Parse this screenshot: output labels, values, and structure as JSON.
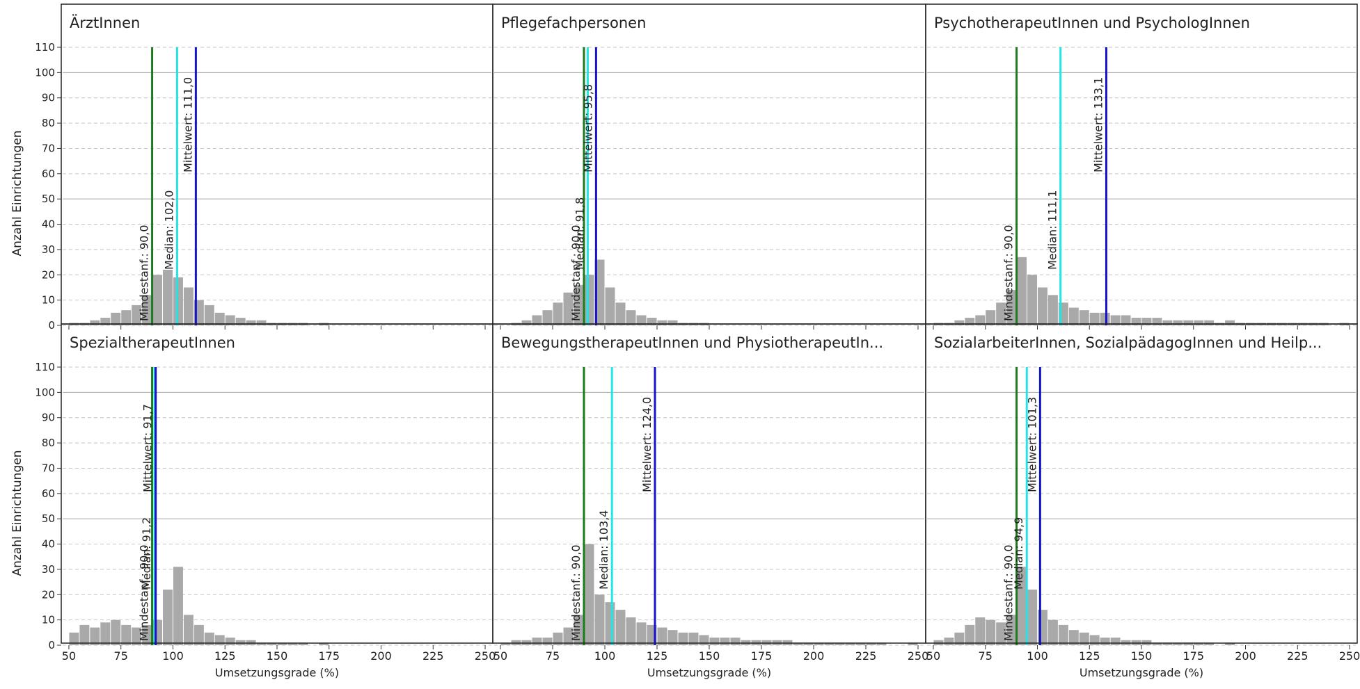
{
  "y_axis_label": "Anzahl Einrichtungen",
  "x_axis_label": "Umsetzungsgrade (%)",
  "line_label_prefixes": {
    "mindest": "Mindestanf.",
    "median": "Median",
    "mittel": "Mittelwert"
  },
  "colors": {
    "mindest": "#1e7a1e",
    "median": "#22e5e5",
    "mittel": "#1414c8",
    "bars": "#a9a9a9",
    "gridline": "#c8c8c8",
    "border": "#222222"
  },
  "x_ticks": [
    50,
    75,
    100,
    125,
    150,
    175,
    200,
    225,
    250
  ],
  "y_ticks": [
    0,
    10,
    20,
    30,
    40,
    50,
    60,
    70,
    80,
    90,
    100,
    110
  ],
  "chart_data": [
    {
      "type": "bar",
      "title": "ÄrztInnen",
      "xlabel": "Umsetzungsgrade (%)",
      "ylabel": "Anzahl Einrichtungen",
      "xlim": [
        47,
        253
      ],
      "ylim": [
        0,
        110
      ],
      "lines": {
        "mindest": "90,0",
        "median": "102,0",
        "mittel": "111,0"
      },
      "line_values": {
        "mindest": 90.0,
        "median": 102.0,
        "mittel": 111.0
      },
      "histogram": {
        "bin_start": 50,
        "bin_width": 5,
        "values": [
          1,
          1,
          2,
          3,
          5,
          6,
          8,
          12,
          20,
          22,
          19,
          15,
          10,
          8,
          5,
          4,
          3,
          2,
          2,
          1,
          1,
          1,
          1,
          0,
          1,
          0,
          0,
          0,
          0,
          0,
          0,
          0,
          0,
          0,
          0,
          0,
          0,
          0,
          0,
          0
        ]
      }
    },
    {
      "type": "bar",
      "title": "Pflegefachpersonen",
      "xlabel": "Umsetzungsgrade (%)",
      "ylabel": "Anzahl Einrichtungen",
      "xlim": [
        47,
        253
      ],
      "ylim": [
        0,
        110
      ],
      "lines": {
        "mindest": "90,0",
        "median": "91,8",
        "mittel": "95,8"
      },
      "line_values": {
        "mindest": 90.0,
        "median": 91.8,
        "mittel": 95.8
      },
      "histogram": {
        "bin_start": 50,
        "bin_width": 5,
        "values": [
          0,
          1,
          2,
          4,
          6,
          9,
          13,
          16,
          20,
          26,
          15,
          9,
          6,
          4,
          3,
          2,
          2,
          1,
          1,
          1,
          0,
          0,
          0,
          0,
          0,
          0,
          0,
          0,
          0,
          0,
          0,
          0,
          0,
          0,
          0,
          0,
          0,
          0,
          0,
          0
        ]
      }
    },
    {
      "type": "bar",
      "title": "PsychotherapeutInnen und PsychologInnen",
      "xlabel": "Umsetzungsgrade (%)",
      "ylabel": "Anzahl Einrichtungen",
      "xlim": [
        47,
        253
      ],
      "ylim": [
        0,
        110
      ],
      "lines": {
        "mindest": "90,0",
        "median": "111,1",
        "mittel": "133,1"
      },
      "line_values": {
        "mindest": 90.0,
        "median": 111.1,
        "mittel": 133.1
      },
      "histogram": {
        "bin_start": 50,
        "bin_width": 5,
        "values": [
          1,
          1,
          2,
          3,
          4,
          6,
          9,
          14,
          27,
          20,
          15,
          12,
          9,
          7,
          6,
          5,
          5,
          4,
          4,
          3,
          3,
          3,
          2,
          2,
          2,
          2,
          2,
          1,
          2,
          1,
          1,
          1,
          1,
          1,
          1,
          1,
          1,
          1,
          0,
          1
        ]
      }
    },
    {
      "type": "bar",
      "title": "SpezialtherapeutInnen",
      "xlabel": "Umsetzungsgrade (%)",
      "ylabel": "Anzahl Einrichtungen",
      "xlim": [
        47,
        253
      ],
      "ylim": [
        0,
        110
      ],
      "lines": {
        "mindest": "90,0",
        "median": "91,2",
        "mittel": "91,7"
      },
      "line_values": {
        "mindest": 90.0,
        "median": 91.2,
        "mittel": 91.7
      },
      "histogram": {
        "bin_start": 50,
        "bin_width": 5,
        "values": [
          5,
          8,
          7,
          9,
          10,
          8,
          7,
          8,
          10,
          22,
          31,
          12,
          8,
          5,
          4,
          3,
          2,
          2,
          1,
          1,
          1,
          1,
          1,
          0,
          1,
          0,
          0,
          0,
          0,
          0,
          0,
          0,
          0,
          0,
          0,
          0,
          0,
          0,
          0,
          0
        ]
      }
    },
    {
      "type": "bar",
      "title": "BewegungstherapeutInnen und PhysiotherapeutIn...",
      "xlabel": "Umsetzungsgrade (%)",
      "ylabel": "Anzahl Einrichtungen",
      "xlim": [
        47,
        253
      ],
      "ylim": [
        0,
        110
      ],
      "lines": {
        "mindest": "90,0",
        "median": "103,4",
        "mittel": "124,0"
      },
      "line_values": {
        "mindest": 90.0,
        "median": 103.4,
        "mittel": 124.0
      },
      "histogram": {
        "bin_start": 50,
        "bin_width": 5,
        "values": [
          1,
          2,
          2,
          3,
          3,
          5,
          7,
          12,
          40,
          20,
          17,
          14,
          11,
          9,
          8,
          7,
          6,
          5,
          5,
          4,
          3,
          3,
          3,
          2,
          2,
          2,
          2,
          2,
          1,
          1,
          1,
          1,
          1,
          1,
          1,
          1,
          1,
          0,
          0,
          1
        ]
      }
    },
    {
      "type": "bar",
      "title": "SozialarbeiterInnen, SozialpädagogInnen und Heilp...",
      "xlabel": "Umsetzungsgrade (%)",
      "ylabel": "Anzahl Einrichtungen",
      "xlim": [
        47,
        253
      ],
      "ylim": [
        0,
        110
      ],
      "lines": {
        "mindest": "90,0",
        "median": "94,9",
        "mittel": "101,3"
      },
      "line_values": {
        "mindest": 90.0,
        "median": 94.9,
        "mittel": 101.3
      },
      "histogram": {
        "bin_start": 50,
        "bin_width": 5,
        "values": [
          2,
          3,
          5,
          8,
          11,
          10,
          9,
          12,
          31,
          22,
          14,
          10,
          8,
          6,
          5,
          4,
          3,
          3,
          2,
          2,
          2,
          1,
          1,
          1,
          1,
          1,
          1,
          0,
          1,
          0,
          0,
          0,
          0,
          0,
          0,
          0,
          0,
          0,
          0,
          0
        ]
      }
    }
  ]
}
